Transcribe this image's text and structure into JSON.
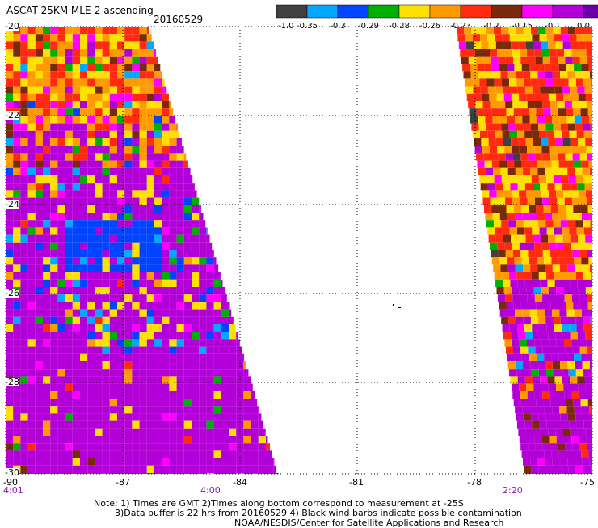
{
  "header": {
    "title": "ASCAT 25KM MLE-2 ascending",
    "date": "20160529"
  },
  "colorbar": {
    "labels": [
      "-1.0",
      "-0.35",
      "-0.3",
      "-0.29",
      "-0.28",
      "-0.26",
      "-0.23",
      "-0.2",
      "-0.15",
      "-0.1",
      "0.0"
    ],
    "colors": [
      "#404040",
      "#00a8ff",
      "#0044ff",
      "#00b000",
      "#ffe000",
      "#ff9a00",
      "#ff2a10",
      "#7a2a0a",
      "#ff00ff",
      "#b400d8",
      "#6a00a8"
    ]
  },
  "axes": {
    "x_ticks": [
      "-90",
      "-87",
      "-84",
      "-81",
      "-78",
      "-75"
    ],
    "y_ticks": [
      "-20",
      "-22",
      "-24",
      "-26",
      "-28",
      "-30"
    ],
    "x_range": [
      -90,
      -75
    ],
    "y_range": [
      -30,
      -20
    ]
  },
  "times": [
    "4:01",
    "4:00",
    "2:20"
  ],
  "notes": {
    "line1": "Note: 1) Times are GMT 2)Times along bottom correspond to measurement at -25S",
    "line2": "3)Data buffer is 22 hrs from 20160529 4) Black wind barbs indicate possible contamination",
    "line3": "NOAA/NESDIS/Center for Satellite Applications and Research"
  }
}
